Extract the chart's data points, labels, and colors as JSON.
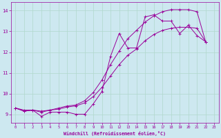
{
  "xlabel": "Windchill (Refroidissement éolien,°C)",
  "background_color": "#cde8f0",
  "line_color": "#990099",
  "grid_color": "#b0d8cc",
  "xlim": [
    -0.5,
    23.5
  ],
  "ylim": [
    8.6,
    14.4
  ],
  "yticks": [
    9,
    10,
    11,
    12,
    13,
    14
  ],
  "xticks": [
    0,
    1,
    2,
    3,
    4,
    5,
    6,
    7,
    8,
    9,
    10,
    11,
    12,
    13,
    14,
    15,
    16,
    17,
    18,
    19,
    20,
    21,
    22,
    23
  ],
  "series": [
    [
      9.3,
      9.2,
      9.2,
      8.9,
      9.1,
      9.1,
      9.1,
      9.0,
      9.0,
      9.5,
      10.1,
      11.8,
      12.9,
      12.2,
      12.2,
      13.7,
      13.8,
      13.5,
      13.5,
      12.9,
      13.3,
      12.8,
      12.5
    ],
    [
      9.3,
      9.15,
      9.2,
      9.15,
      9.2,
      9.25,
      9.35,
      9.4,
      9.55,
      9.85,
      10.3,
      10.85,
      11.4,
      11.85,
      12.15,
      12.55,
      12.85,
      13.05,
      13.15,
      13.2,
      13.2,
      13.15,
      12.5
    ],
    [
      9.3,
      9.15,
      9.2,
      9.1,
      9.2,
      9.3,
      9.4,
      9.45,
      9.65,
      10.05,
      10.65,
      11.4,
      12.05,
      12.65,
      13.05,
      13.45,
      13.75,
      13.95,
      14.05,
      14.05,
      14.05,
      13.95,
      12.5
    ]
  ]
}
